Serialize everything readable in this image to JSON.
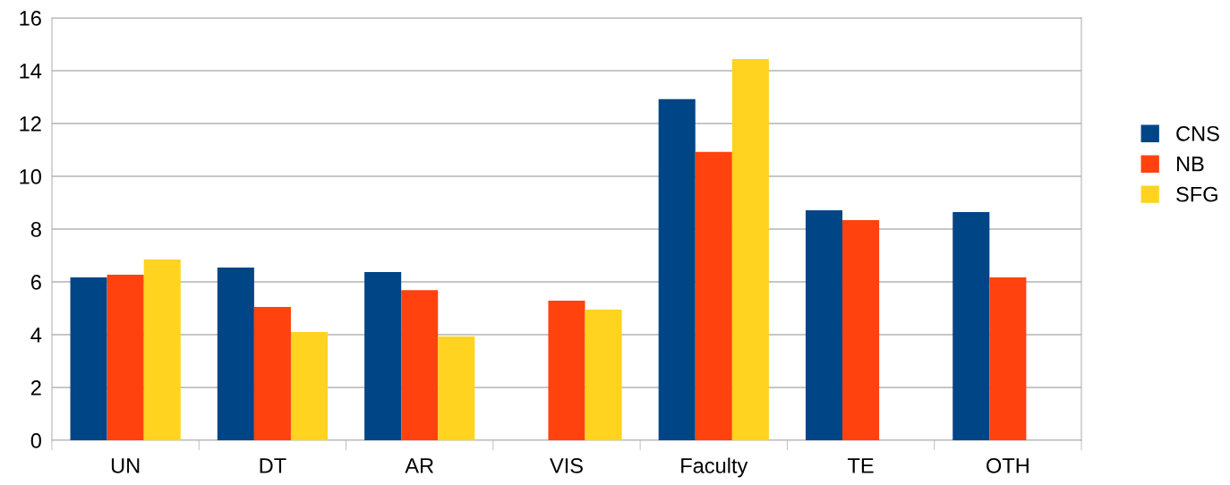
{
  "chart_data": {
    "type": "bar",
    "categories": [
      "UN",
      "DT",
      "AR",
      "VIS",
      "Faculty",
      "TE",
      "OTH"
    ],
    "series": [
      {
        "name": "CNS",
        "color": "#004586",
        "values": [
          6.17,
          6.54,
          6.37,
          null,
          12.92,
          8.71,
          8.64
        ]
      },
      {
        "name": "NB",
        "color": "#ff420e",
        "values": [
          6.27,
          5.05,
          5.69,
          5.29,
          10.92,
          8.34,
          6.17
        ]
      },
      {
        "name": "SFG",
        "color": "#ffd320",
        "values": [
          6.85,
          4.1,
          3.93,
          4.95,
          14.44,
          null,
          null
        ]
      }
    ],
    "ylim": [
      0,
      16
    ],
    "yticks": [
      0,
      2,
      4,
      6,
      8,
      10,
      12,
      14,
      16
    ],
    "grid": "y",
    "legend": "right"
  }
}
